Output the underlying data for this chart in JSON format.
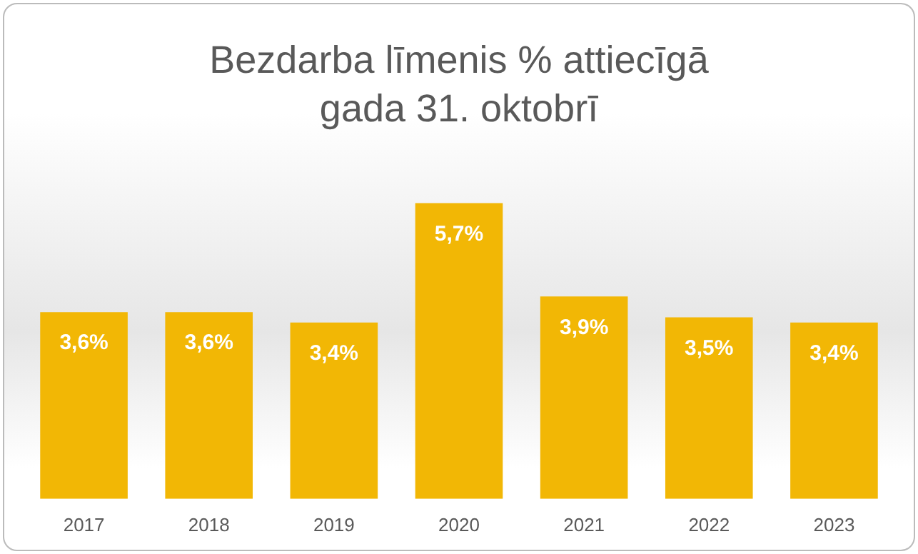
{
  "chart_data": {
    "type": "bar",
    "title": "Bezdarba līmenis % attiecīgā gada 31. oktobrī",
    "categories": [
      "2017",
      "2018",
      "2019",
      "2020",
      "2021",
      "2022",
      "2023"
    ],
    "values": [
      3.6,
      3.6,
      3.4,
      5.7,
      3.9,
      3.5,
      3.4
    ],
    "value_labels": [
      "3,6%",
      "3,6%",
      "3,4%",
      "5,7%",
      "3,9%",
      "3,5%",
      "3,4%"
    ],
    "color": "#f2b705",
    "grid": false,
    "legend": false
  }
}
